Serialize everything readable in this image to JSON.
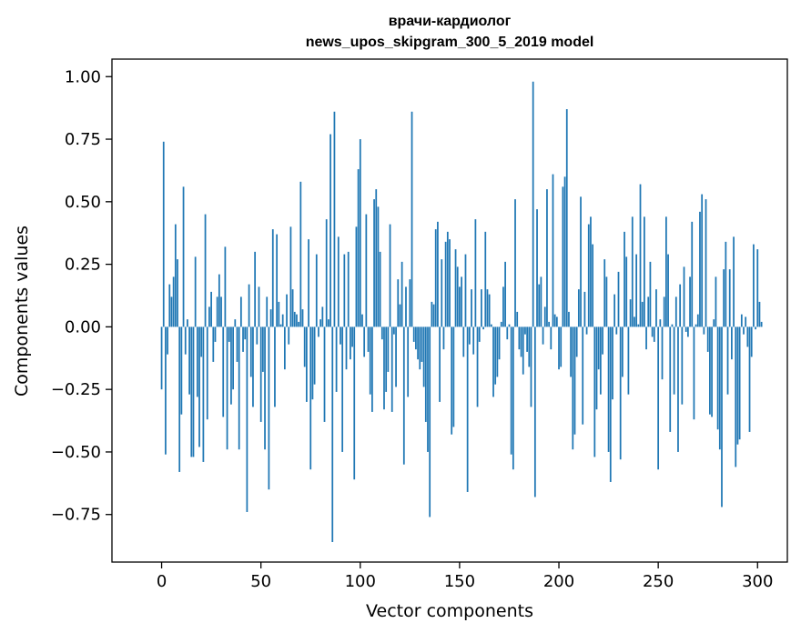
{
  "chart_data": {
    "type": "bar",
    "title": "врачи-кардиолог",
    "subtitle": "news_upos_skipgram_300_5_2019 model",
    "xlabel": "Vector components",
    "ylabel": "Components values",
    "xlim": [
      -25,
      315
    ],
    "ylim": [
      -0.94,
      1.07
    ],
    "xticks": [
      0,
      50,
      100,
      150,
      200,
      250,
      300
    ],
    "yticks": [
      -0.75,
      -0.5,
      -0.25,
      0.0,
      0.25,
      0.5,
      0.75,
      1.0
    ],
    "ytick_labels": [
      "−0.75",
      "−0.50",
      "−0.25",
      "0.00",
      "0.25",
      "0.50",
      "0.75",
      "1.00"
    ],
    "grid": false,
    "bar_color": "#1f77b4",
    "values": [
      -0.25,
      0.74,
      -0.51,
      -0.11,
      0.17,
      0.12,
      0.2,
      0.41,
      0.27,
      -0.58,
      -0.35,
      0.56,
      -0.11,
      0.03,
      -0.27,
      -0.52,
      -0.52,
      0.28,
      -0.28,
      -0.48,
      -0.12,
      -0.54,
      0.45,
      -0.37,
      0.08,
      0.14,
      -0.14,
      -0.06,
      0.12,
      0.21,
      0.12,
      -0.36,
      0.32,
      -0.49,
      -0.06,
      -0.31,
      -0.25,
      0.03,
      -0.14,
      -0.49,
      0.12,
      -0.1,
      -0.05,
      -0.74,
      0.17,
      -0.2,
      -0.32,
      0.3,
      -0.07,
      0.16,
      -0.38,
      -0.18,
      -0.49,
      0.12,
      -0.65,
      0.07,
      0.39,
      -0.32,
      0.37,
      0.1,
      0.01,
      0.05,
      -0.17,
      0.13,
      -0.07,
      0.4,
      0.15,
      0.06,
      0.05,
      0.02,
      0.58,
      0.07,
      -0.16,
      -0.3,
      0.35,
      -0.57,
      -0.29,
      -0.23,
      0.29,
      -0.04,
      0.03,
      0.08,
      -0.38,
      0.43,
      0.03,
      0.77,
      -0.86,
      0.86,
      -0.26,
      0.36,
      -0.07,
      -0.5,
      0.29,
      -0.17,
      0.3,
      -0.13,
      -0.08,
      -0.61,
      0.4,
      0.63,
      0.75,
      0.05,
      -0.12,
      0.45,
      -0.1,
      -0.27,
      -0.34,
      0.51,
      0.55,
      0.48,
      0.3,
      -0.05,
      -0.33,
      -0.26,
      -0.18,
      0.41,
      -0.34,
      -0.03,
      -0.24,
      0.19,
      0.09,
      0.26,
      -0.55,
      0.16,
      -0.28,
      0.19,
      0.86,
      -0.06,
      -0.09,
      -0.13,
      -0.17,
      -0.14,
      -0.24,
      -0.38,
      -0.5,
      -0.76,
      0.1,
      0.09,
      0.39,
      0.42,
      -0.3,
      0.27,
      -0.09,
      0.34,
      0.38,
      0.35,
      -0.43,
      -0.4,
      0.31,
      0.24,
      0.16,
      0.2,
      -0.12,
      0.29,
      -0.66,
      -0.07,
      0.15,
      -0.11,
      0.43,
      -0.32,
      -0.06,
      0.15,
      -0.01,
      0.38,
      0.15,
      0.13,
      0.01,
      -0.28,
      -0.23,
      -0.2,
      -0.13,
      0.02,
      0.16,
      0.26,
      -0.05,
      0.01,
      -0.51,
      -0.57,
      0.51,
      0.06,
      -0.09,
      -0.12,
      -0.19,
      -0.03,
      -0.1,
      -0.16,
      -0.32,
      0.98,
      -0.68,
      0.47,
      0.17,
      0.2,
      -0.07,
      0.08,
      0.55,
      0.02,
      -0.09,
      0.61,
      0.05,
      0.04,
      -0.17,
      -0.16,
      0.56,
      0.6,
      0.87,
      0.06,
      -0.2,
      -0.49,
      -0.43,
      -0.12,
      0.15,
      0.52,
      -0.39,
      0.14,
      -0.03,
      0.41,
      0.44,
      0.33,
      -0.52,
      -0.33,
      -0.17,
      -0.27,
      -0.11,
      0.27,
      0.2,
      -0.5,
      -0.62,
      -0.29,
      0.13,
      -0.03,
      0.22,
      -0.53,
      -0.2,
      0.38,
      0.28,
      -0.27,
      0.11,
      0.44,
      0.04,
      0.29,
      0.01,
      0.57,
      0.1,
      0.44,
      -0.09,
      0.12,
      0.26,
      -0.04,
      -0.06,
      0.15,
      -0.57,
      0.03,
      -0.21,
      0.12,
      0.44,
      0.29,
      -0.42,
      0.01,
      -0.27,
      0.12,
      -0.5,
      0.17,
      -0.31,
      0.24,
      -0.02,
      -0.04,
      0.2,
      0.42,
      -0.37,
      0.01,
      0.05,
      0.46,
      0.53,
      -0.03,
      0.51,
      -0.1,
      -0.35,
      -0.36,
      0.03,
      0.2,
      -0.41,
      -0.49,
      -0.72,
      0.23,
      0.34,
      -0.27,
      0.23,
      -0.13,
      0.36,
      -0.56,
      -0.47,
      -0.45,
      0.05,
      -0.03,
      0.04,
      -0.08,
      -0.42,
      -0.12,
      0.33,
      -0.01,
      0.31,
      0.1,
      0.02
    ]
  }
}
